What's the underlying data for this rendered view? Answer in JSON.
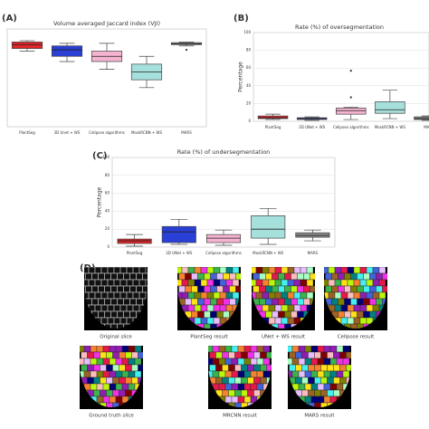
{
  "chart_data": [
    {
      "type": "box",
      "panel": "(A)",
      "title": "Volume averaged Jaccard index (VJI)",
      "categories": [
        "PlantSeg",
        "3D Unet + WS",
        "Cellpose algorithms",
        "MaskRCNN + WS",
        "MARS"
      ],
      "colors": [
        "#e0262a",
        "#2a3fd6",
        "#f4b3cf",
        "#a6e0dc",
        "#8a8a8a"
      ],
      "boxes": [
        {
          "min": 0.88,
          "q1": 0.9,
          "median": 0.93,
          "q3": 0.95,
          "max": 0.96,
          "outliers": []
        },
        {
          "min": 0.8,
          "q1": 0.84,
          "median": 0.89,
          "q3": 0.92,
          "max": 0.94,
          "outliers": []
        },
        {
          "min": 0.74,
          "q1": 0.8,
          "median": 0.84,
          "q3": 0.88,
          "max": 0.94,
          "outliers": []
        },
        {
          "min": 0.6,
          "q1": 0.66,
          "median": 0.72,
          "q3": 0.78,
          "max": 0.84,
          "outliers": []
        },
        {
          "min": 0.92,
          "q1": 0.93,
          "median": 0.935,
          "q3": 0.945,
          "max": 0.95,
          "outliers": [
            0.89
          ]
        }
      ],
      "ylim": [
        0.3,
        1.05
      ]
    },
    {
      "type": "box",
      "panel": "(B)",
      "title": "Rate (%) of oversegmentation",
      "ylabel": "Percentage",
      "categories": [
        "PlantSeg",
        "3D UNet + WS",
        "Cellpose algorithms",
        "MaskRCNN + WS",
        "MARS"
      ],
      "colors": [
        "#e0262a",
        "#2a3fd6",
        "#f4b3cf",
        "#a6e0dc",
        "#8a8a8a"
      ],
      "boxes": [
        {
          "min": 2,
          "q1": 3,
          "median": 4,
          "q3": 6,
          "max": 8,
          "outliers": []
        },
        {
          "min": 1,
          "q1": 2,
          "median": 3,
          "q3": 4,
          "max": 5,
          "outliers": []
        },
        {
          "min": 2,
          "q1": 8,
          "median": 12,
          "q3": 15,
          "max": 16,
          "outliers": [
            57,
            27
          ]
        },
        {
          "min": 3,
          "q1": 9,
          "median": 13,
          "q3": 22,
          "max": 35,
          "outliers": []
        },
        {
          "min": 1,
          "q1": 2,
          "median": 3,
          "q3": 5,
          "max": 6,
          "outliers": []
        }
      ],
      "ylim": [
        0,
        100
      ],
      "yticks": [
        0,
        20,
        40,
        60,
        80,
        100
      ],
      "grid": true
    },
    {
      "type": "box",
      "panel": "(C)",
      "title": "Rate (%) of undersegmentation",
      "ylabel": "Percentage",
      "categories": [
        "PlantSeg",
        "3D UNet + WS",
        "Cellpose algorithms",
        "MaskRCNN + WS",
        "MARS"
      ],
      "colors": [
        "#e0262a",
        "#2a3fd6",
        "#f4b3cf",
        "#a6e0dc",
        "#8a8a8a"
      ],
      "boxes": [
        {
          "min": 1,
          "q1": 4,
          "median": 7,
          "q3": 9,
          "max": 14,
          "outliers": []
        },
        {
          "min": 3,
          "q1": 5,
          "median": 17,
          "q3": 23,
          "max": 31,
          "outliers": []
        },
        {
          "min": 2,
          "q1": 5,
          "median": 10,
          "q3": 14,
          "max": 19,
          "outliers": []
        },
        {
          "min": 3,
          "q1": 10,
          "median": 20,
          "q3": 35,
          "max": 43,
          "outliers": []
        },
        {
          "min": 7,
          "q1": 11,
          "median": 13,
          "q3": 16,
          "max": 19,
          "outliers": []
        }
      ],
      "ylim": [
        0,
        100
      ],
      "yticks": [
        0,
        20,
        40,
        60,
        80,
        100
      ],
      "grid": true
    }
  ],
  "images": {
    "panel": "(D)",
    "captions": [
      "Original slice",
      "PlantSeg result",
      "UNet + WS result",
      "Cellpose result",
      "Ground truth slice",
      "MRCNN result",
      "MARS result"
    ]
  }
}
